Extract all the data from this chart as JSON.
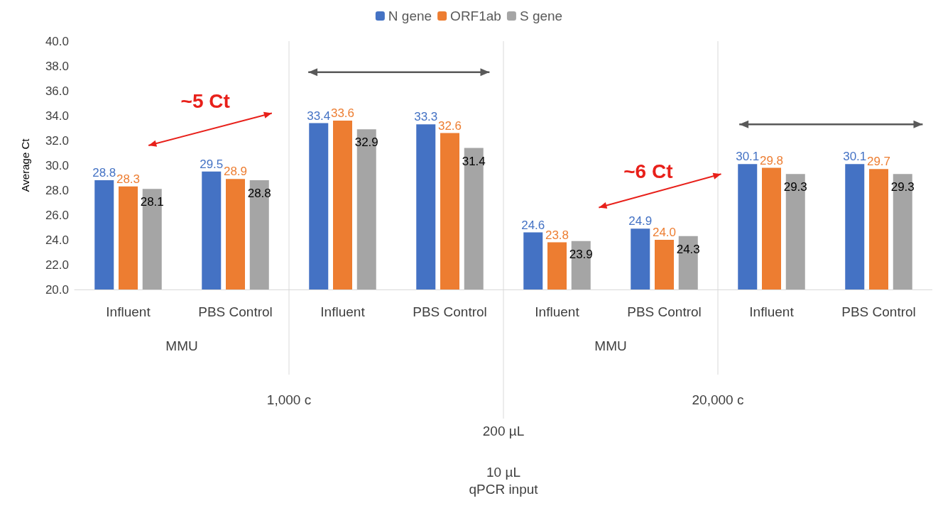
{
  "chart_data": {
    "type": "bar",
    "ylabel": "Average Ct",
    "categories": [
      "Influent",
      "PBS Control",
      "Influent",
      "PBS Control",
      "Influent",
      "PBS Control",
      "Influent",
      "PBS Control"
    ],
    "series": [
      {
        "name": "N gene",
        "color": "#4472c4",
        "values": [
          28.8,
          29.5,
          33.4,
          33.3,
          24.6,
          24.9,
          30.1,
          30.1
        ],
        "value_labels": [
          "28.8",
          "29.5",
          "33.4",
          "33.3",
          "24.6",
          "24.9",
          "30.1",
          "30.1"
        ]
      },
      {
        "name": "ORF1ab",
        "color": "#ed7d31",
        "values": [
          28.3,
          28.9,
          33.6,
          32.6,
          23.8,
          24.0,
          29.8,
          29.7
        ],
        "value_labels": [
          "28.3",
          "28.9",
          "33.6",
          "32.6",
          "23.8",
          "24.0",
          "29.8",
          "29.7"
        ]
      },
      {
        "name": "S gene",
        "color": "#a5a5a5",
        "values": [
          28.1,
          28.8,
          32.9,
          31.4,
          23.9,
          24.3,
          29.3,
          29.3
        ],
        "value_labels": [
          "28.1",
          "28.8",
          "32.9",
          "31.4",
          "23.9",
          "24.3",
          "29.3",
          "29.3"
        ]
      }
    ],
    "ylim": [
      20,
      40
    ],
    "yticks": [
      {
        "value": 20,
        "label": "20.0"
      },
      {
        "value": 22,
        "label": "22.0"
      },
      {
        "value": 24,
        "label": "24.0"
      },
      {
        "value": 26,
        "label": "26.0"
      },
      {
        "value": 28,
        "label": "28.0"
      },
      {
        "value": 30,
        "label": "30.0"
      },
      {
        "value": 32,
        "label": "32.0"
      },
      {
        "value": 34,
        "label": "34.0"
      },
      {
        "value": 36,
        "label": "36.0"
      },
      {
        "value": 38,
        "label": "38.0"
      },
      {
        "value": 40,
        "label": "40.0"
      }
    ],
    "annotations": [
      "MMU",
      "MMU",
      "1,000 c",
      "20,000 c",
      "200 µL",
      "~5 Ct",
      "~6 Ct",
      "10 µL\nqPCR input"
    ],
    "legend": "top",
    "grid": false
  }
}
